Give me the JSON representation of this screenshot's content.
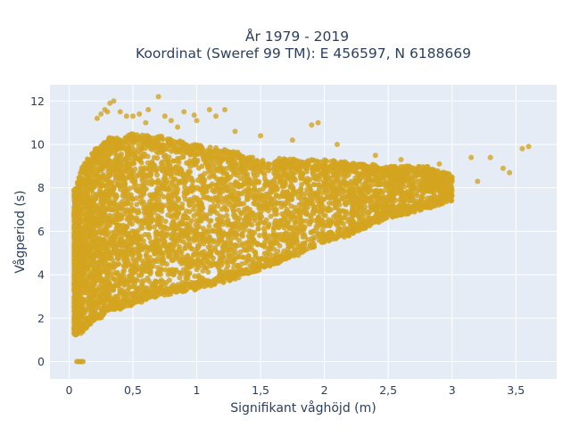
{
  "chart_data": {
    "type": "scatter",
    "title": "År 1979 - 2019",
    "subtitle": "Koordinat (Sweref 99 TM): E 456597, N 6188669",
    "xlabel": "Signifikant våghöjd (m)",
    "ylabel": "Vågperiod (s)",
    "xlim": [
      -0.15,
      3.82
    ],
    "ylim": [
      -0.8,
      12.75
    ],
    "x_ticks": [
      0,
      0.5,
      1,
      1.5,
      2,
      2.5,
      3,
      3.5
    ],
    "x_tick_labels": [
      "0",
      "0,5",
      "1",
      "1,5",
      "2",
      "2,5",
      "3",
      "3,5"
    ],
    "y_ticks": [
      0,
      2,
      4,
      6,
      8,
      10,
      12
    ],
    "y_tick_labels": [
      "0",
      "2",
      "4",
      "6",
      "8",
      "10",
      "12"
    ],
    "grid": true,
    "marker_color": "#d4a520",
    "plot_background": "#e5ecf6",
    "series": [
      {
        "envelope": {
          "x": [
            0.05,
            0.1,
            0.2,
            0.3,
            0.5,
            0.7,
            1.0,
            1.2,
            1.5,
            1.8,
            2.0,
            2.2,
            2.5,
            2.8,
            3.0
          ],
          "y_min": [
            1.2,
            1.3,
            1.8,
            2.2,
            2.6,
            3.0,
            3.3,
            3.6,
            4.2,
            4.9,
            5.5,
            5.8,
            6.6,
            7.0,
            7.4
          ],
          "y_max": [
            8.0,
            9.0,
            9.8,
            10.3,
            10.5,
            10.4,
            10.0,
            9.8,
            9.4,
            9.3,
            9.3,
            9.2,
            9.0,
            9.0,
            8.6
          ]
        },
        "points": [
          [
            0.06,
            0
          ],
          [
            0.07,
            0
          ],
          [
            0.08,
            0
          ],
          [
            0.09,
            0
          ],
          [
            0.1,
            0
          ],
          [
            0.11,
            0
          ],
          [
            0.32,
            11.9
          ],
          [
            0.35,
            12.0
          ],
          [
            0.3,
            11.5
          ],
          [
            0.28,
            11.6
          ],
          [
            0.25,
            11.4
          ],
          [
            0.22,
            11.2
          ],
          [
            0.4,
            11.5
          ],
          [
            0.45,
            11.3
          ],
          [
            0.5,
            11.3
          ],
          [
            0.55,
            11.4
          ],
          [
            0.62,
            11.6
          ],
          [
            0.7,
            12.2
          ],
          [
            0.75,
            11.3
          ],
          [
            0.8,
            11.1
          ],
          [
            0.9,
            11.5
          ],
          [
            1.0,
            11.1
          ],
          [
            1.1,
            11.6
          ],
          [
            1.15,
            11.3
          ],
          [
            1.22,
            11.6
          ],
          [
            0.98,
            11.35
          ],
          [
            0.6,
            11.0
          ],
          [
            0.85,
            10.8
          ],
          [
            1.3,
            10.6
          ],
          [
            1.5,
            10.4
          ],
          [
            1.9,
            10.9
          ],
          [
            1.95,
            11.0
          ],
          [
            1.75,
            10.2
          ],
          [
            2.1,
            10.0
          ],
          [
            2.4,
            9.5
          ],
          [
            2.6,
            9.3
          ],
          [
            2.9,
            9.1
          ],
          [
            3.15,
            9.4
          ],
          [
            3.3,
            9.4
          ],
          [
            3.4,
            8.9
          ],
          [
            3.45,
            8.7
          ],
          [
            3.55,
            9.8
          ],
          [
            3.6,
            9.9
          ],
          [
            3.2,
            8.3
          ],
          [
            3.0,
            8.5
          ],
          [
            2.95,
            8.1
          ],
          [
            2.8,
            8.2
          ],
          [
            2.75,
            7.9
          ],
          [
            2.5,
            7.6
          ],
          [
            2.25,
            7.2
          ]
        ]
      }
    ]
  }
}
